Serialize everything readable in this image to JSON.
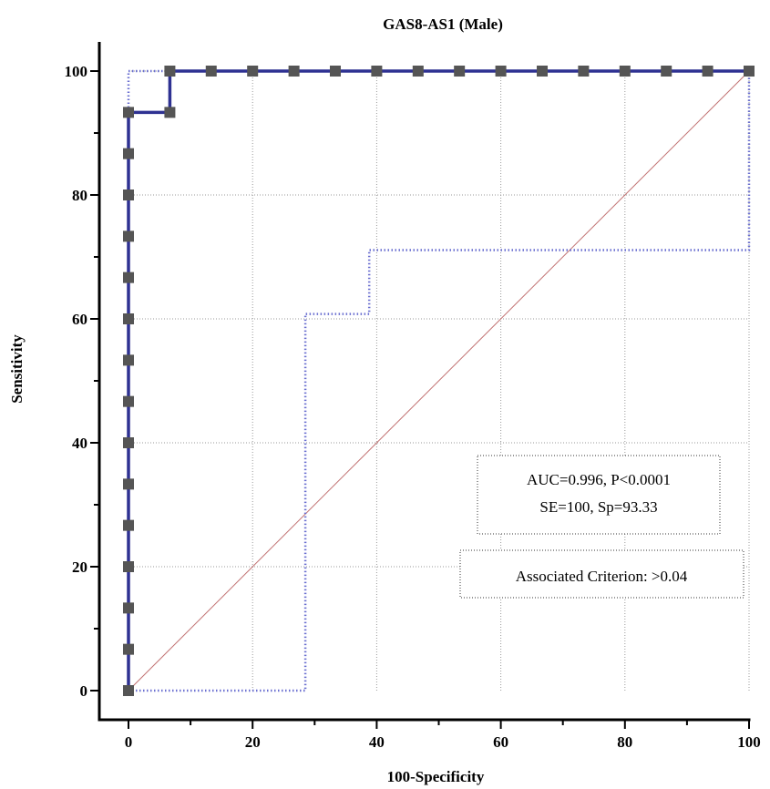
{
  "chart_data": {
    "type": "line",
    "title": "GAS8-AS1 (Male)",
    "xlabel": "100-Specificity",
    "ylabel": "Sensitivity",
    "xlim": [
      0,
      100
    ],
    "ylim": [
      0,
      100
    ],
    "x_ticks": [
      0,
      20,
      40,
      60,
      80,
      100
    ],
    "y_ticks": [
      0,
      20,
      40,
      60,
      80,
      100
    ],
    "grid": true,
    "series": [
      {
        "role": "roc-curve",
        "color": "#2e3192",
        "marker_color": "#555555",
        "points": [
          [
            0,
            0
          ],
          [
            0,
            6.67
          ],
          [
            0,
            13.33
          ],
          [
            0,
            20
          ],
          [
            0,
            26.67
          ],
          [
            0,
            33.33
          ],
          [
            0,
            40
          ],
          [
            0,
            46.67
          ],
          [
            0,
            53.33
          ],
          [
            0,
            60
          ],
          [
            0,
            66.67
          ],
          [
            0,
            73.33
          ],
          [
            0,
            80
          ],
          [
            0,
            86.67
          ],
          [
            0,
            93.33
          ],
          [
            6.67,
            93.33
          ],
          [
            6.67,
            100
          ],
          [
            13.33,
            100
          ],
          [
            20,
            100
          ],
          [
            26.67,
            100
          ],
          [
            33.33,
            100
          ],
          [
            40,
            100
          ],
          [
            46.67,
            100
          ],
          [
            53.33,
            100
          ],
          [
            60,
            100
          ],
          [
            66.67,
            100
          ],
          [
            73.33,
            100
          ],
          [
            80,
            100
          ],
          [
            86.67,
            100
          ],
          [
            93.33,
            100
          ],
          [
            100,
            100
          ]
        ]
      },
      {
        "role": "upper-confidence-bound",
        "color": "#6a6fd0",
        "style": "dotted",
        "points": [
          [
            0,
            0
          ],
          [
            0,
            100
          ],
          [
            100,
            100
          ]
        ]
      },
      {
        "role": "lower-confidence-bound",
        "color": "#6a6fd0",
        "style": "dotted",
        "points": [
          [
            0,
            0
          ],
          [
            28.5,
            0
          ],
          [
            28.5,
            60.8
          ],
          [
            38.8,
            60.8
          ],
          [
            38.8,
            71.1
          ],
          [
            100,
            71.1
          ],
          [
            100,
            100
          ]
        ]
      },
      {
        "role": "reference-diagonal",
        "color": "#c07070",
        "points": [
          [
            0,
            0
          ],
          [
            100,
            100
          ]
        ]
      }
    ],
    "annotations": [
      {
        "lines": [
          "AUC=0.996, P<0.0001",
          "SE=100, Sp=93.33"
        ]
      },
      {
        "lines": [
          "Associated Criterion: >0.04"
        ]
      }
    ]
  }
}
